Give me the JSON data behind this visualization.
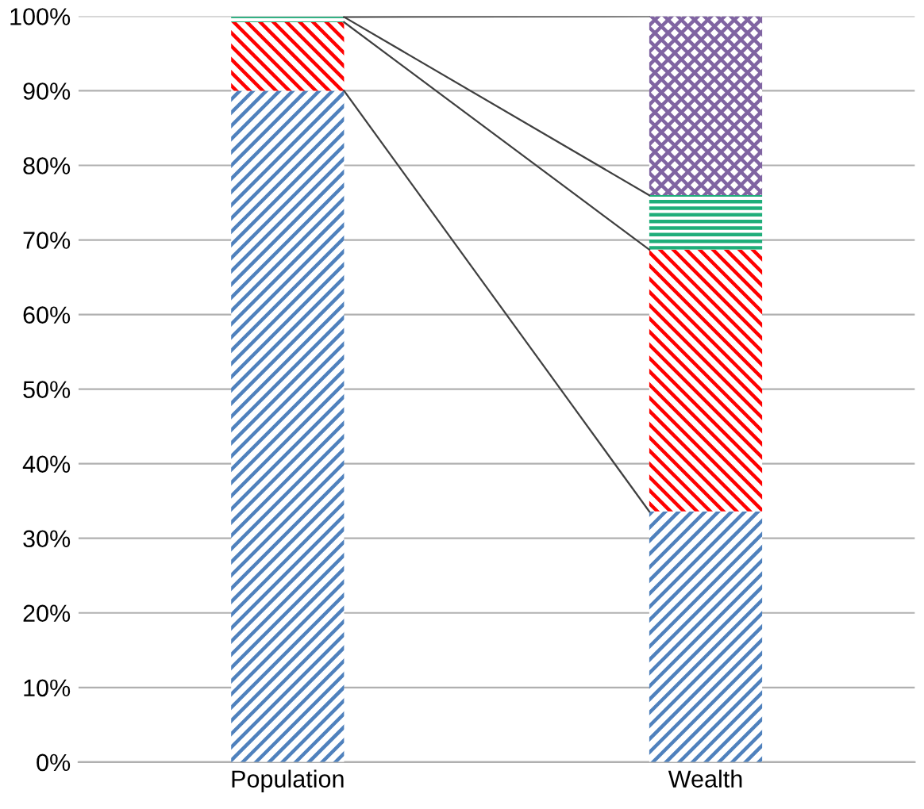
{
  "chart_data": {
    "type": "bar",
    "stacked": true,
    "categories": [
      "Population",
      "Wealth"
    ],
    "series": [
      {
        "color": "#4f81bd",
        "values": [
          90,
          33.6
        ]
      },
      {
        "color": "#ff0000",
        "values": [
          9.2,
          35.1
        ]
      },
      {
        "color": "#1fae7a",
        "values": [
          0.7,
          7.3
        ]
      },
      {
        "color": "#8064a2",
        "values": [
          null,
          24.0
        ]
      }
    ],
    "ylim": [
      0,
      100
    ],
    "yticks": [
      {
        "value": 0,
        "label": "0%"
      },
      {
        "value": 10,
        "label": "10%"
      },
      {
        "value": 20,
        "label": "20%"
      },
      {
        "value": 30,
        "label": "30%"
      },
      {
        "value": 40,
        "label": "40%"
      },
      {
        "value": 50,
        "label": "50%"
      },
      {
        "value": 60,
        "label": "60%"
      },
      {
        "value": 70,
        "label": "70%"
      },
      {
        "value": 80,
        "label": "80%"
      },
      {
        "value": 90,
        "label": "90%"
      },
      {
        "value": 100,
        "label": "100%"
      }
    ],
    "grid": "y",
    "legend": false
  }
}
